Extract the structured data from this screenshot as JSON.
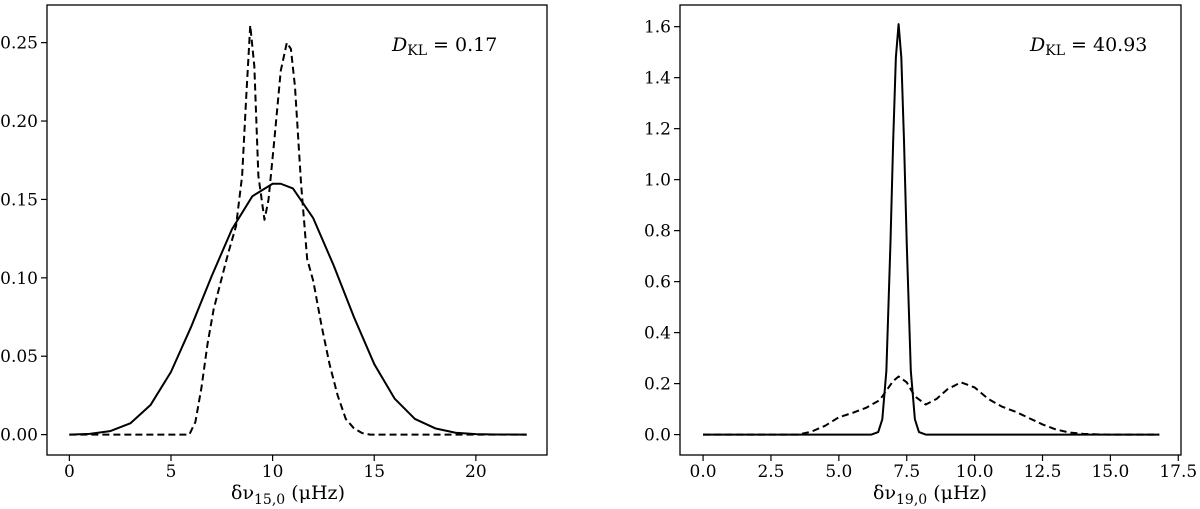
{
  "figure": {
    "panels": [
      {
        "annotation": "D_KL = 0.17",
        "annotation_main": "D",
        "annotation_sub": "KL",
        "annotation_value": " = 0.17",
        "xlabel_prefix": "δν",
        "xlabel_sub": "15,0",
        "xlabel_suffix": " (μHz)"
      },
      {
        "annotation": "D_KL = 40.93",
        "annotation_main": "D",
        "annotation_sub": "KL",
        "annotation_value": " = 40.93",
        "xlabel_prefix": "δν",
        "xlabel_sub": "19,0",
        "xlabel_suffix": " (μHz)"
      }
    ]
  },
  "chart_data": [
    {
      "type": "line",
      "xlabel": "δν15,0 (μHz)",
      "ylabel": "",
      "xlim": [
        -1.1,
        23.5
      ],
      "ylim": [
        -0.013,
        0.274
      ],
      "xticks": [
        0,
        5,
        10,
        15,
        20
      ],
      "xtick_labels": [
        "0",
        "5",
        "10",
        "15",
        "20"
      ],
      "yticks": [
        0.0,
        0.05,
        0.1,
        0.15,
        0.2,
        0.25
      ],
      "ytick_labels": [
        "0.00",
        "0.05",
        "0.10",
        "0.15",
        "0.20",
        "0.25"
      ],
      "annotation": "D_KL = 0.17",
      "grid": false,
      "series": [
        {
          "style": "solid",
          "x": [
            0,
            1,
            2,
            3,
            4,
            5,
            6,
            7,
            8,
            9,
            10,
            10.4,
            11,
            12,
            13,
            14,
            15,
            16,
            17,
            18,
            19,
            20,
            21,
            22.5
          ],
          "y": [
            0.0,
            0.0005,
            0.0022,
            0.0072,
            0.019,
            0.04,
            0.069,
            0.101,
            0.131,
            0.152,
            0.16,
            0.16,
            0.157,
            0.138,
            0.108,
            0.075,
            0.045,
            0.023,
            0.01,
            0.004,
            0.0012,
            0.0003,
            0.0001,
            0.0
          ]
        },
        {
          "style": "dashed",
          "x": [
            0,
            5.9,
            6.2,
            6.5,
            6.8,
            7.1,
            7.4,
            7.8,
            8.2,
            8.5,
            8.7,
            8.9,
            9.1,
            9.3,
            9.6,
            9.8,
            10.1,
            10.4,
            10.7,
            10.9,
            11.1,
            11.4,
            11.7,
            12.0,
            12.4,
            12.8,
            13.2,
            13.6,
            14.0,
            14.4,
            14.8,
            15.3,
            22.5
          ],
          "y": [
            0.0,
            0.0,
            0.008,
            0.03,
            0.058,
            0.08,
            0.095,
            0.115,
            0.133,
            0.165,
            0.215,
            0.261,
            0.235,
            0.165,
            0.137,
            0.15,
            0.19,
            0.232,
            0.25,
            0.246,
            0.222,
            0.16,
            0.112,
            0.098,
            0.07,
            0.045,
            0.025,
            0.01,
            0.004,
            0.001,
            0.0,
            0.0,
            0.0
          ]
        }
      ]
    },
    {
      "type": "line",
      "xlabel": "δν19,0 (μHz)",
      "ylabel": "",
      "xlim": [
        -0.85,
        17.6
      ],
      "ylim": [
        -0.08,
        1.685
      ],
      "xticks": [
        0.0,
        2.5,
        5.0,
        7.5,
        10.0,
        12.5,
        15.0,
        17.5
      ],
      "xtick_labels": [
        "0.0",
        "2.5",
        "5.0",
        "7.5",
        "10.0",
        "12.5",
        "15.0",
        "17.5"
      ],
      "yticks": [
        0.0,
        0.2,
        0.4,
        0.6,
        0.8,
        1.0,
        1.2,
        1.4,
        1.6
      ],
      "ytick_labels": [
        "0.0",
        "0.2",
        "0.4",
        "0.6",
        "0.8",
        "1.0",
        "1.2",
        "1.4",
        "1.6"
      ],
      "annotation": "D_KL = 40.93",
      "grid": false,
      "series": [
        {
          "style": "solid",
          "x": [
            0,
            6.2,
            6.45,
            6.6,
            6.75,
            6.9,
            7.0,
            7.1,
            7.2,
            7.3,
            7.4,
            7.5,
            7.65,
            7.8,
            7.95,
            8.2,
            16.8
          ],
          "y": [
            0.0,
            0.0,
            0.01,
            0.06,
            0.25,
            0.75,
            1.15,
            1.48,
            1.61,
            1.48,
            1.15,
            0.75,
            0.25,
            0.06,
            0.01,
            0.0,
            0.0
          ]
        },
        {
          "style": "dashed",
          "x": [
            0,
            3.5,
            4.0,
            4.5,
            5.0,
            5.5,
            6.0,
            6.5,
            7.0,
            7.2,
            7.5,
            7.8,
            8.2,
            8.6,
            9.0,
            9.5,
            10.0,
            10.5,
            11.0,
            11.5,
            12.0,
            12.5,
            13.0,
            13.5,
            14.0,
            14.5,
            15.0,
            16.8
          ],
          "y": [
            0.0,
            0.0,
            0.012,
            0.035,
            0.068,
            0.085,
            0.105,
            0.135,
            0.21,
            0.228,
            0.205,
            0.15,
            0.118,
            0.14,
            0.178,
            0.205,
            0.185,
            0.14,
            0.11,
            0.09,
            0.065,
            0.04,
            0.02,
            0.008,
            0.003,
            0.001,
            0.0,
            0.0
          ]
        }
      ]
    }
  ]
}
